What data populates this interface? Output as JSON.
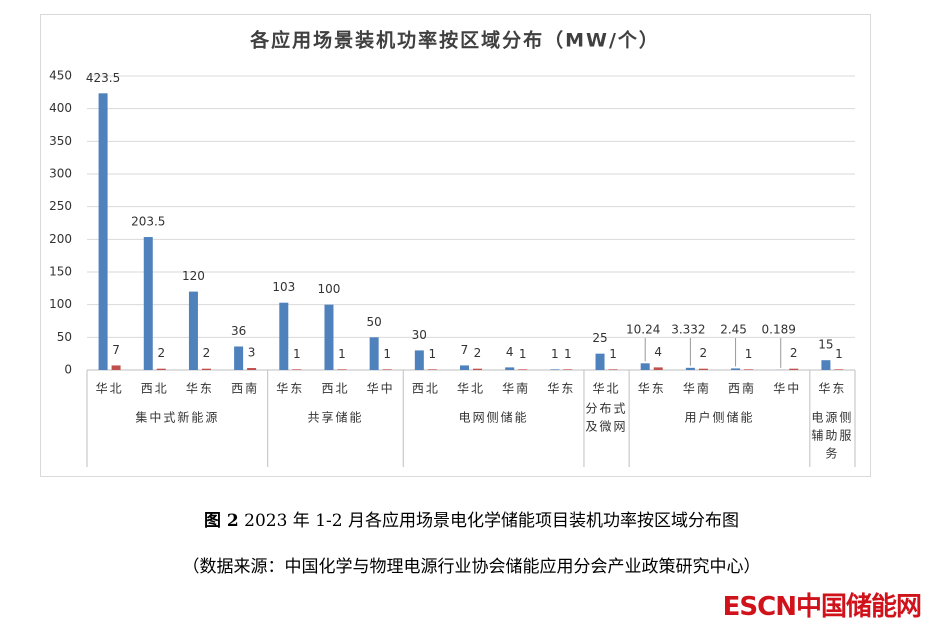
{
  "chart_data": {
    "type": "bar",
    "title": "各应用场景装机功率按区域分布（MW/个）",
    "groups": [
      {
        "label": [
          "集中式新能源"
        ],
        "categories": [
          "华北",
          "西北",
          "华东",
          "西南"
        ]
      },
      {
        "label": [
          "共享储能"
        ],
        "categories": [
          "华东",
          "西北",
          "华中"
        ]
      },
      {
        "label": [
          "电网侧储能"
        ],
        "categories": [
          "西北",
          "华北",
          "华南",
          "华东"
        ]
      },
      {
        "label": [
          "分布式",
          "及微网"
        ],
        "categories": [
          "华北"
        ]
      },
      {
        "label": [
          "用户侧储能"
        ],
        "categories": [
          "华东",
          "华南",
          "西南",
          "华中"
        ]
      },
      {
        "label": [
          "电源侧",
          "辅助服",
          "务"
        ],
        "categories": [
          "华东"
        ]
      }
    ],
    "series": [
      {
        "color": "#4f81bd",
        "values": [
          423.5,
          203.5,
          120,
          36,
          103,
          100,
          50,
          30,
          7,
          4,
          1,
          25,
          10.24,
          3.332,
          2.45,
          0.189,
          15
        ]
      },
      {
        "color": "#c0504d",
        "values": [
          7,
          2,
          2,
          3,
          1,
          1,
          1,
          1,
          2,
          1,
          1,
          1,
          4,
          2,
          1,
          2,
          1
        ]
      }
    ],
    "ylim": [
      0,
      450
    ],
    "yticks": [
      0,
      50,
      100,
      150,
      200,
      250,
      300,
      350,
      400,
      450
    ],
    "grid": true
  },
  "caption": {
    "figure": "图 2",
    "text": "2023 年 1-2 月各应用场景电化学储能项目装机功率按区域分布图",
    "source": "（数据来源：中国化学与物理电源行业协会储能应用分会产业政策研究中心）"
  },
  "logo": "ESCN中国储能网"
}
